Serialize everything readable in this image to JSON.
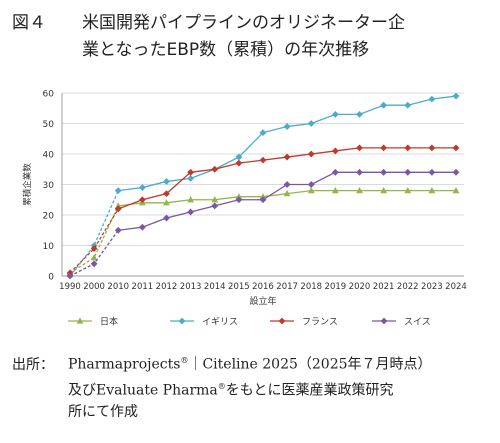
{
  "title": {
    "figure_label": "図４",
    "line1": "米国開発パイプラインのオリジネーター企",
    "line2": "業となったEBP数（累積）の年次推移"
  },
  "source": {
    "prefix": "出所：",
    "line1_a": "Pharmaprojects",
    "line1_sup": "®",
    "line1_b": "｜Citeline 2025（2025年７月時点）",
    "line2_a": "及びEvaluate Pharma",
    "line2_sup": "®",
    "line2_b": "をもとに医薬産業政策研究",
    "line3": "所にて作成"
  },
  "chart_data": {
    "type": "line",
    "title": "",
    "xlabel": "設立年",
    "ylabel": "累積企業数",
    "ylim": [
      0,
      60
    ],
    "yticks": [
      0,
      10,
      20,
      30,
      40,
      50,
      60
    ],
    "grid": true,
    "legend_position": "bottom",
    "categories": [
      "1990",
      "2000",
      "2010",
      "2011",
      "2012",
      "2013",
      "2014",
      "2015",
      "2016",
      "2017",
      "2018",
      "2019",
      "2020",
      "2021",
      "2022",
      "2023",
      "2024"
    ],
    "dashed_segments_until_index": 2,
    "series": [
      {
        "name": "日本",
        "color": "#92b64a",
        "marker": "triangle",
        "values": [
          1,
          6,
          23,
          24,
          24,
          25,
          25,
          26,
          26,
          27,
          28,
          28,
          28,
          28,
          28,
          28,
          28
        ]
      },
      {
        "name": "イギリス",
        "color": "#4aaccc",
        "marker": "diamond",
        "values": [
          0,
          10,
          28,
          29,
          31,
          32,
          35,
          39,
          47,
          49,
          50,
          53,
          53,
          56,
          56,
          58,
          59
        ]
      },
      {
        "name": "フランス",
        "color": "#c0392b",
        "marker": "diamond",
        "values": [
          1,
          9,
          22,
          25,
          27,
          34,
          35,
          37,
          38,
          39,
          40,
          41,
          42,
          42,
          42,
          42,
          42
        ]
      },
      {
        "name": "スイス",
        "color": "#7b56a4",
        "marker": "diamond",
        "values": [
          0,
          4,
          15,
          16,
          19,
          21,
          23,
          25,
          25,
          30,
          30,
          34,
          34,
          34,
          34,
          34,
          34
        ]
      }
    ]
  }
}
